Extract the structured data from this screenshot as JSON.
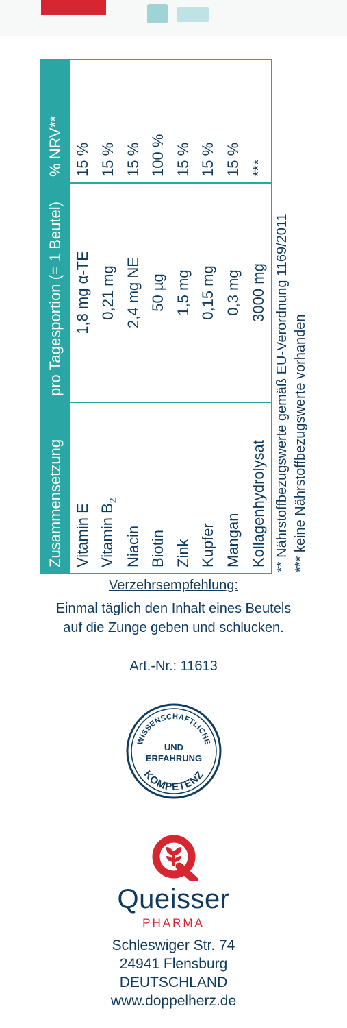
{
  "table": {
    "headers": [
      "Zusammensetzung",
      "pro Tagesportion (= 1 Beutel)",
      "% NRV**"
    ],
    "rows": [
      {
        "name": "Vitamin E",
        "amount": "1,8 mg α-TE",
        "nrv": "15 %"
      },
      {
        "name": "Vitamin B",
        "sub": "2",
        "amount": "0,21 mg",
        "nrv": "15 %"
      },
      {
        "name": "Niacin",
        "amount": "2,4 mg NE",
        "nrv": "15 %"
      },
      {
        "name": "Biotin",
        "amount": "50  µg",
        "nrv": "100 %"
      },
      {
        "name": "Zink",
        "amount": "1,5 mg",
        "nrv": "15 %"
      },
      {
        "name": "Kupfer",
        "amount": "0,15 mg",
        "nrv": "15 %"
      },
      {
        "name": "Mangan",
        "amount": "0,3 mg",
        "nrv": "15 %"
      },
      {
        "name": "Kollagenhydrolysat",
        "amount": "3000 mg",
        "nrv": "***"
      }
    ]
  },
  "footnotes": [
    "**  Nährstoffbezugswerte gemäß EU-Verordnung 1169/2011",
    "*** keine Nährstoffbezugswerte vorhanden"
  ],
  "recommendation": {
    "title": "Verzehrsempfehlung:",
    "line1": "Einmal täglich den Inhalt eines Beutels",
    "line2": "auf die Zunge geben und schlucken."
  },
  "article_number": "Art.-Nr.: 11613",
  "seal": {
    "top_arc": "WISSENSCHAFTLICHE",
    "center1": "UND",
    "center2": "ERFAHRUNG",
    "bottom_arc": "KOMPETENZ"
  },
  "brand": {
    "name": "Queisser",
    "sub": "PHARMA",
    "address1": "Schleswiger Str. 74",
    "address2": "24941 Flensburg",
    "address3": "DEUTSCHLAND",
    "website": "www.doppelherz.de"
  },
  "colors": {
    "teal": "#2aa7a5",
    "navy": "#0e3b5e",
    "red": "#d7262f"
  }
}
